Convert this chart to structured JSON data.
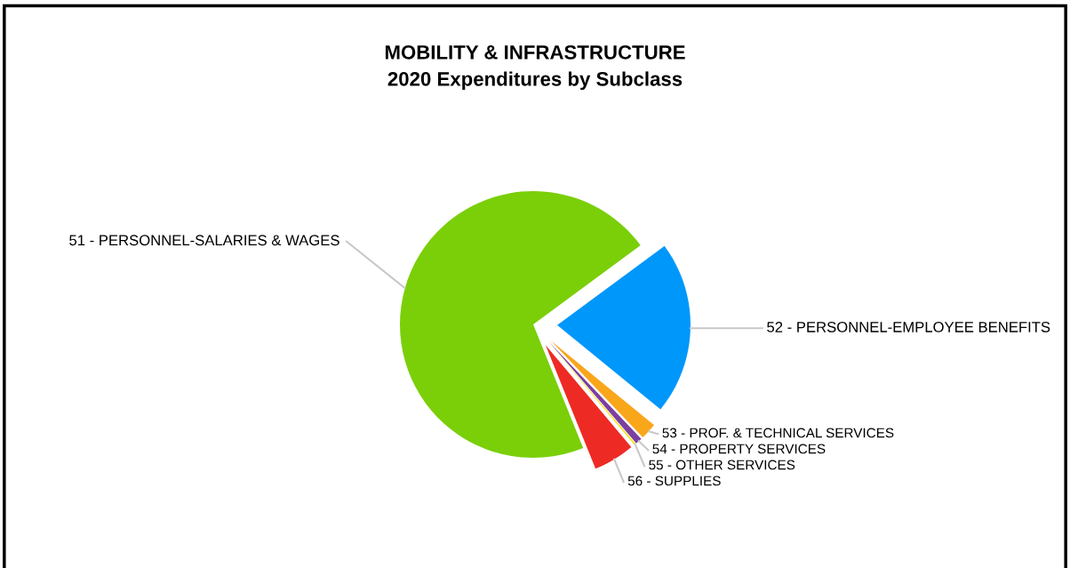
{
  "chart_data": {
    "type": "pie",
    "title": "MOBILITY & INFRASTRUCTURE",
    "subtitle": "2020 Expenditures by Subclass",
    "categories": [
      "51 - PERSONNEL-SALARIES & WAGES",
      "52 - PERSONNEL-EMPLOYEE BENEFITS",
      "53 - PROF. & TECHNICAL SERVICES",
      "54 - PROPERTY SERVICES",
      "55 - OTHER SERVICES",
      "56 - SUPPLIES"
    ],
    "values": [
      71,
      21,
      2,
      0.8,
      0.2,
      5
    ],
    "colors": [
      "#7acf08",
      "#0097fb",
      "#f9a61b",
      "#7b3fa0",
      "#f5e51a",
      "#ee2a24"
    ],
    "legend": false
  }
}
